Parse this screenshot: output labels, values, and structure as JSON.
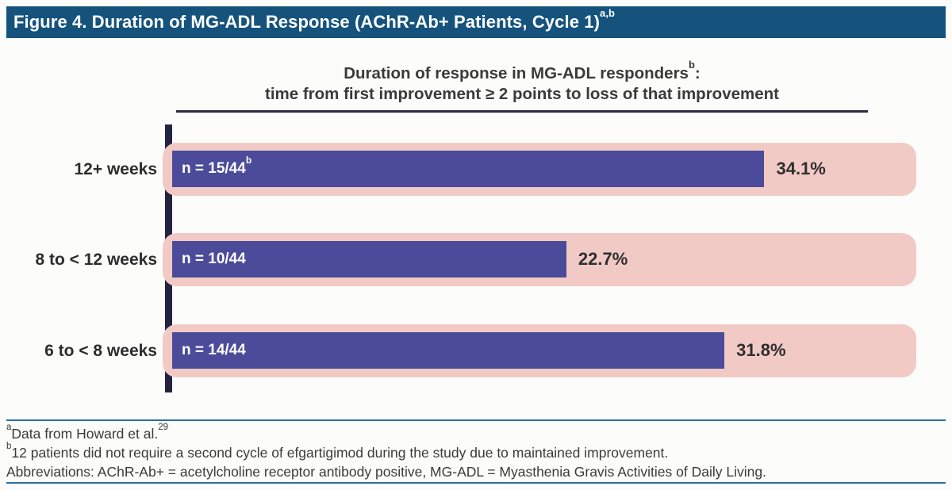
{
  "header": {
    "title": "Figure 4. Duration of MG-ADL Response (AChR-Ab+ Patients, Cycle 1)",
    "title_superscript": "a,b"
  },
  "chart_data": {
    "type": "bar",
    "orientation": "horizontal",
    "title": "Duration of response in MG-ADL responders",
    "title_superscript": "b",
    "title_suffix": ":",
    "subtitle": "time from first improvement ≥ 2 points to loss of that improvement",
    "categories": [
      "12+ weeks",
      "8 to < 12 weeks",
      "6 to < 8 weeks"
    ],
    "values": [
      34.1,
      22.7,
      31.8
    ],
    "value_labels": [
      "34.1%",
      "22.7%",
      "31.8%"
    ],
    "bar_labels": [
      "n = 15/44",
      "n = 10/44",
      "n = 14/44"
    ],
    "bar_label_superscripts": [
      "b",
      "",
      ""
    ],
    "xlim": [
      0,
      42.3
    ],
    "grid": false,
    "legend": false,
    "track_full_width_note": "pink tracks span full axis width behind bars"
  },
  "footnotes": {
    "line1": {
      "sup": "a",
      "text": "Data from Howard et al.",
      "ref": "29"
    },
    "line2": {
      "sup": "b",
      "text": "12 patients did not require a second cycle of efgartigimod during the study due to maintained improvement."
    },
    "line3": {
      "text": "Abbreviations: AChR-Ab+ = acetylcholine receptor antibody positive, MG-ADL = Myasthenia Gravis Activities of Daily Living."
    }
  },
  "colors": {
    "header_bg": "#15537d",
    "header_text": "#ffffff",
    "bar_fill": "#4b4b99",
    "track_fill": "#f2cac5",
    "axis_line": "#242440",
    "subtitle_text": "#3a3a3c",
    "subtitle_underline": "#2c2c3e",
    "footnote_rule": "#2e6da4",
    "body_text": "#3b3b3d"
  }
}
